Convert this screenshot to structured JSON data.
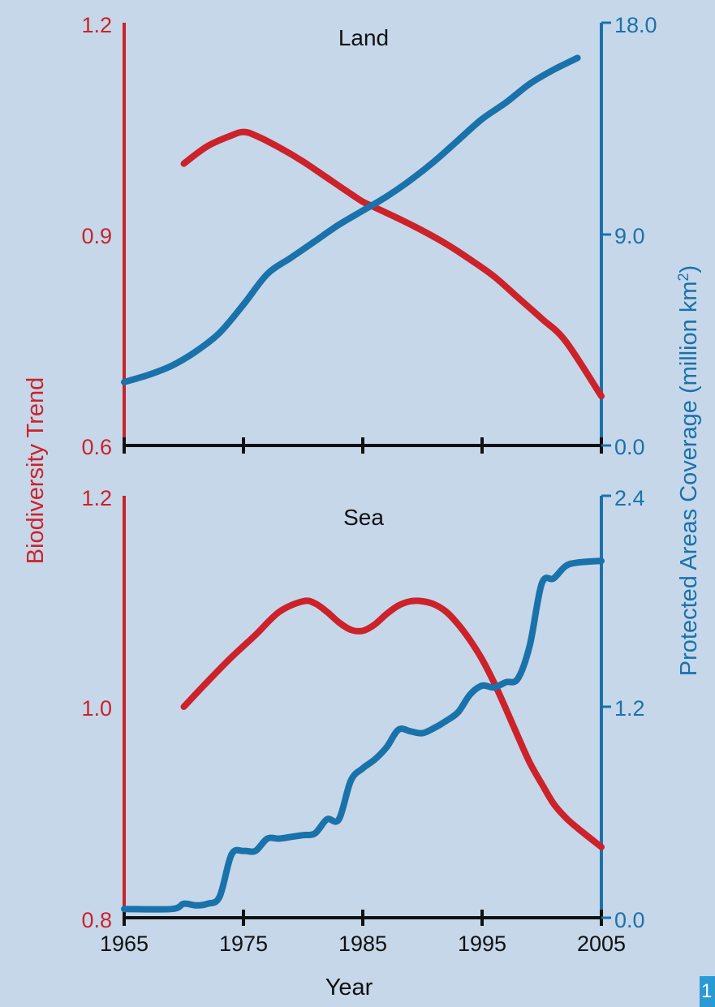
{
  "chart_data": [
    {
      "type": "line",
      "title": "Land",
      "x": [
        1970,
        1972,
        1974,
        1975,
        1976,
        1978,
        1980,
        1982,
        1984,
        1985,
        1986,
        1988,
        1990,
        1992,
        1994,
        1996,
        1998,
        2000,
        2002,
        2005
      ],
      "series": [
        {
          "axis": "left",
          "color": "#cc2229",
          "values": [
            1.0,
            1.025,
            1.04,
            1.045,
            1.04,
            1.023,
            1.003,
            0.98,
            0.957,
            0.946,
            0.938,
            0.922,
            0.905,
            0.886,
            0.864,
            0.84,
            0.81,
            0.78,
            0.748,
            0.67
          ]
        }
      ],
      "x_right": [
        1965,
        1967,
        1969,
        1971,
        1973,
        1975,
        1977,
        1979,
        1981,
        1983,
        1985,
        1987,
        1989,
        1991,
        1993,
        1995,
        1997,
        1999,
        2001,
        2003
      ],
      "series_right": [
        {
          "axis": "right",
          "color": "#1a72ab",
          "values": [
            2.7,
            3.0,
            3.4,
            4.0,
            4.8,
            6.0,
            7.3,
            8.0,
            8.7,
            9.4,
            10.0,
            10.6,
            11.3,
            12.1,
            13.0,
            13.9,
            14.6,
            15.4,
            16.0,
            16.5
          ]
        }
      ],
      "xlim": [
        1965,
        2005
      ],
      "ylim_left": [
        0.6,
        1.2
      ],
      "ylim_right": [
        0.0,
        18.0
      ],
      "left_ticks": [
        "1.2",
        "0.9",
        "0.6"
      ],
      "right_ticks": [
        "18.0",
        "9.0",
        "0.0"
      ]
    },
    {
      "type": "line",
      "title": "Sea",
      "x": [
        1970,
        1972,
        1974,
        1976,
        1978,
        1980,
        1981,
        1982,
        1983,
        1984,
        1985,
        1986,
        1987,
        1988,
        1989,
        1990,
        1991,
        1992,
        1993,
        1994,
        1995,
        1996,
        1997,
        1998,
        1999,
        2000,
        2001,
        2002,
        2003,
        2005
      ],
      "series": [
        {
          "axis": "left",
          "color": "#cc2229",
          "values": [
            1.0,
            1.024,
            1.047,
            1.068,
            1.09,
            1.1,
            1.098,
            1.09,
            1.08,
            1.073,
            1.072,
            1.078,
            1.088,
            1.096,
            1.1,
            1.1,
            1.097,
            1.09,
            1.078,
            1.063,
            1.045,
            1.023,
            0.998,
            0.972,
            0.947,
            0.927,
            0.908,
            0.895,
            0.885,
            0.867
          ]
        }
      ],
      "x_right": [
        1965,
        1969,
        1970,
        1971,
        1972,
        1973,
        1974,
        1975,
        1976,
        1977,
        1978,
        1979,
        1980,
        1981,
        1982,
        1983,
        1984,
        1985,
        1986,
        1987,
        1988,
        1989,
        1990,
        1991,
        1992,
        1993,
        1994,
        1995,
        1996,
        1997,
        1998,
        1999,
        2000,
        2001,
        2002,
        2003,
        2005
      ],
      "series_right": [
        {
          "axis": "right",
          "color": "#1a72ab",
          "values": [
            0.05,
            0.05,
            0.08,
            0.07,
            0.08,
            0.12,
            0.36,
            0.38,
            0.38,
            0.45,
            0.45,
            0.46,
            0.47,
            0.48,
            0.56,
            0.56,
            0.78,
            0.85,
            0.9,
            0.97,
            1.07,
            1.06,
            1.05,
            1.08,
            1.12,
            1.17,
            1.27,
            1.32,
            1.31,
            1.34,
            1.36,
            1.55,
            1.9,
            1.93,
            2.0,
            2.02,
            2.03
          ]
        }
      ],
      "xlim": [
        1965,
        2005
      ],
      "ylim_left": [
        0.8,
        1.2
      ],
      "ylim_right": [
        0.0,
        2.4
      ],
      "left_ticks": [
        "1.2",
        "1.0",
        "0.8"
      ],
      "right_ticks": [
        "2.4",
        "1.2",
        "0.0"
      ],
      "x_ticks": [
        "1965",
        "1975",
        "1985",
        "1995",
        "2005"
      ]
    }
  ],
  "labels": {
    "ylabel_left": "Biodiversity Trend",
    "ylabel_right_main": "Protected Areas Coverage (million km",
    "ylabel_right_sup": "2",
    "ylabel_right_end": ")",
    "xlabel": "Year",
    "page_badge": "1"
  },
  "colors": {
    "background": "#c6d7ea",
    "biodiversity": "#cc2229",
    "coverage": "#1a72ab"
  }
}
